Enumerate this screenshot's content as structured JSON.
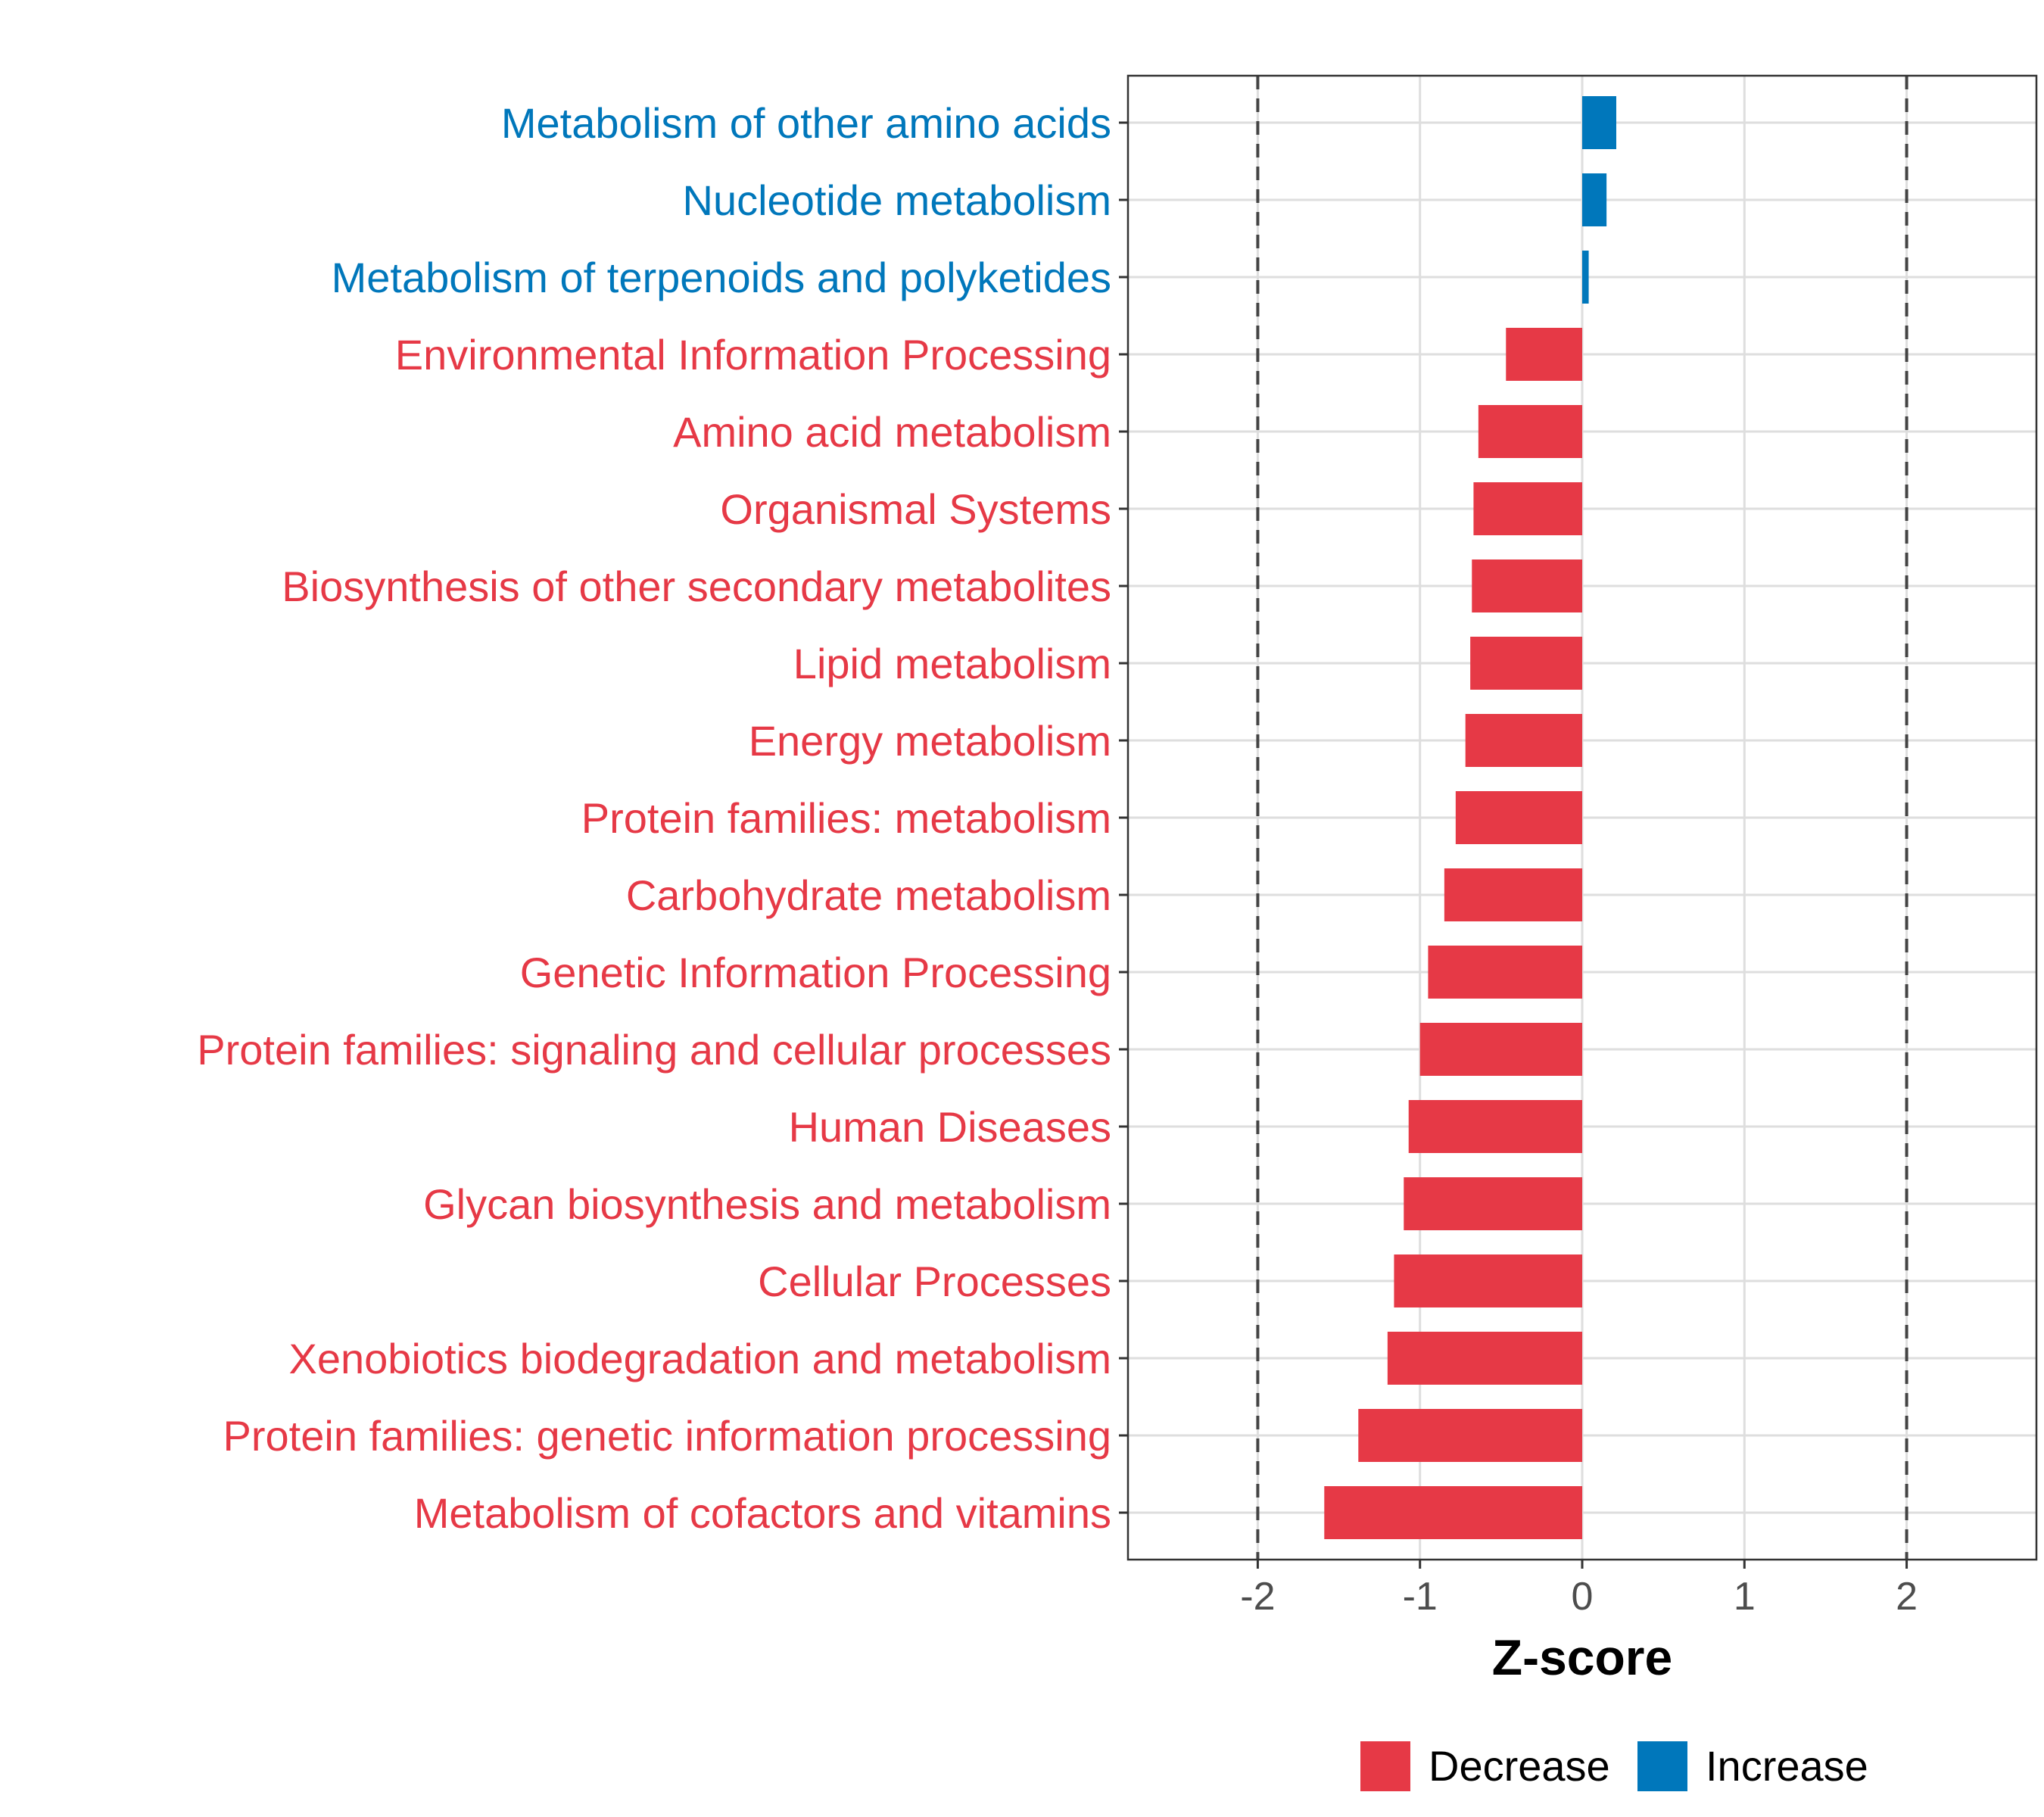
{
  "chart_data": {
    "type": "bar",
    "orientation": "horizontal",
    "xlabel": "Z-score",
    "xlim": [
      -2.8,
      2.8
    ],
    "xticks": [
      -2,
      -1,
      0,
      1,
      2
    ],
    "xtick_labels": [
      "-2",
      "-1",
      "0",
      "1",
      "2"
    ],
    "reference_lines": [
      -2,
      2
    ],
    "grid": true,
    "colors": {
      "Decrease": "#e63946",
      "Increase": "#0077bb"
    },
    "legend": {
      "position": "bottom",
      "entries": [
        {
          "label": "Decrease",
          "color": "#e63946"
        },
        {
          "label": "Increase",
          "color": "#0077bb"
        }
      ]
    },
    "categories": [
      "Metabolism of other amino acids",
      "Nucleotide metabolism",
      "Metabolism of terpenoids and polyketides",
      "Environmental Information Processing",
      "Amino acid metabolism",
      "Organismal Systems",
      "Biosynthesis of other secondary metabolites",
      "Lipid metabolism",
      "Energy metabolism",
      "Protein families: metabolism",
      "Carbohydrate metabolism",
      "Genetic Information Processing",
      "Protein families: signaling and cellular processes",
      "Human Diseases",
      "Glycan biosynthesis and metabolism",
      "Cellular Processes",
      "Xenobiotics biodegradation and metabolism",
      "Protein families: genetic information processing",
      "Metabolism of cofactors and vitamins"
    ],
    "values": [
      0.21,
      0.15,
      0.04,
      -0.47,
      -0.64,
      -0.67,
      -0.68,
      -0.69,
      -0.72,
      -0.78,
      -0.85,
      -0.95,
      -1.0,
      -1.07,
      -1.1,
      -1.16,
      -1.2,
      -1.38,
      -1.59
    ],
    "groups": [
      "Increase",
      "Increase",
      "Increase",
      "Decrease",
      "Decrease",
      "Decrease",
      "Decrease",
      "Decrease",
      "Decrease",
      "Decrease",
      "Decrease",
      "Decrease",
      "Decrease",
      "Decrease",
      "Decrease",
      "Decrease",
      "Decrease",
      "Decrease",
      "Decrease"
    ]
  }
}
